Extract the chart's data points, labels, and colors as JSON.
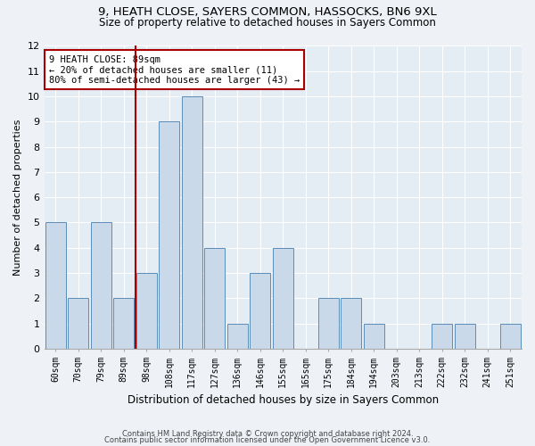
{
  "title": "9, HEATH CLOSE, SAYERS COMMON, HASSOCKS, BN6 9XL",
  "subtitle": "Size of property relative to detached houses in Sayers Common",
  "xlabel": "Distribution of detached houses by size in Sayers Common",
  "ylabel": "Number of detached properties",
  "categories": [
    "60sqm",
    "70sqm",
    "79sqm",
    "89sqm",
    "98sqm",
    "108sqm",
    "117sqm",
    "127sqm",
    "136sqm",
    "146sqm",
    "155sqm",
    "165sqm",
    "175sqm",
    "184sqm",
    "194sqm",
    "203sqm",
    "213sqm",
    "222sqm",
    "232sqm",
    "241sqm",
    "251sqm"
  ],
  "values": [
    5,
    2,
    5,
    2,
    3,
    9,
    10,
    4,
    1,
    3,
    4,
    0,
    2,
    2,
    1,
    0,
    0,
    1,
    1,
    0,
    1
  ],
  "highlight_index": 3,
  "bar_color": "#c9d9ea",
  "bar_edge_color": "#5b8db8",
  "highlight_line_color": "#aa0000",
  "annotation_box_color": "#aa0000",
  "annotation_text": "9 HEATH CLOSE: 89sqm\n← 20% of detached houses are smaller (11)\n80% of semi-detached houses are larger (43) →",
  "ylim": [
    0,
    12
  ],
  "yticks": [
    0,
    1,
    2,
    3,
    4,
    5,
    6,
    7,
    8,
    9,
    10,
    11,
    12
  ],
  "footer1": "Contains HM Land Registry data © Crown copyright and database right 2024.",
  "footer2": "Contains public sector information licensed under the Open Government Licence v3.0.",
  "bg_color": "#eef2f7",
  "plot_bg_color": "#e4ecf4",
  "title_fontsize": 9.5,
  "subtitle_fontsize": 8.5,
  "ylabel_fontsize": 8,
  "xlabel_fontsize": 8.5,
  "tick_fontsize": 7,
  "annot_fontsize": 7.5,
  "footer_fontsize": 6
}
